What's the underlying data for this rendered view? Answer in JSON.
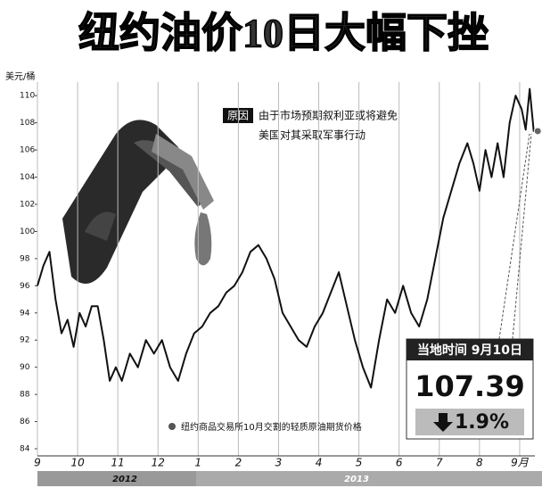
{
  "chart_data": {
    "type": "line",
    "title": "纽约油价10日大幅下挫",
    "y_label": "美元/桶",
    "annotation": {
      "tag": "原因",
      "lines": [
        "由于市场预期叙利亚或将避免",
        "美国对其采取军事行动"
      ]
    },
    "callout": {
      "header": "当地时间 9月10日",
      "value": "107.39",
      "change": "1.9%"
    },
    "years": [
      "2012",
      "2013"
    ],
    "x": [
      0,
      0.15,
      0.3,
      0.45,
      0.6,
      0.75,
      0.9,
      1.05,
      1.2,
      1.35,
      1.5,
      1.65,
      1.8,
      1.95,
      2.1,
      2.3,
      2.5,
      2.7,
      2.9,
      3.1,
      3.3,
      3.5,
      3.7,
      3.9,
      4.1,
      4.3,
      4.5,
      4.7,
      4.9,
      5.1,
      5.3,
      5.5,
      5.7,
      5.9,
      6.1,
      6.3,
      6.5,
      6.7,
      6.9,
      7.1,
      7.3,
      7.5,
      7.7,
      7.9,
      8.1,
      8.3,
      8.5,
      8.7,
      8.9,
      9.1,
      9.3,
      9.5,
      9.7,
      9.9,
      10.1,
      10.3,
      10.5,
      10.7,
      10.85,
      11.0,
      11.15,
      11.3,
      11.45,
      11.6,
      11.75,
      11.9,
      12.05,
      12.15,
      12.25,
      12.35,
      12.45
    ],
    "series": [
      {
        "name": "纽约商品交易所10月交割的轻质原油期货价格",
        "color": "#111111",
        "values": [
          96,
          97.5,
          98.5,
          95,
          92.5,
          93.5,
          91.5,
          94,
          93,
          94.5,
          94.5,
          92,
          89,
          90,
          89,
          91,
          90,
          92,
          91,
          92,
          90,
          89,
          91,
          92.5,
          93,
          94,
          94.5,
          95.5,
          96,
          97,
          98.5,
          99,
          98,
          96.5,
          94,
          93,
          92,
          91.5,
          93,
          94,
          95.5,
          97,
          94.5,
          92,
          90,
          88.5,
          92,
          95,
          94,
          96,
          94,
          93,
          95,
          98,
          101,
          103,
          105,
          106.5,
          105,
          103,
          106,
          104,
          106.5,
          104,
          108,
          110,
          109,
          107.5,
          110.5,
          107.39,
          107.39
        ]
      }
    ],
    "xlim": [
      0,
      12.7
    ],
    "xticks": [
      {
        "value": 0,
        "label": "9"
      },
      {
        "value": 1,
        "label": "10"
      },
      {
        "value": 2,
        "label": "11"
      },
      {
        "value": 3,
        "label": "12"
      },
      {
        "value": 4,
        "label": "1"
      },
      {
        "value": 5,
        "label": "2"
      },
      {
        "value": 6,
        "label": "3"
      },
      {
        "value": 7,
        "label": "4"
      },
      {
        "value": 8,
        "label": "5"
      },
      {
        "value": 9,
        "label": "6"
      },
      {
        "value": 10,
        "label": "7"
      },
      {
        "value": 11,
        "label": "8"
      },
      {
        "value": 12,
        "label": "9月"
      }
    ],
    "ylim": [
      84,
      111
    ],
    "yticks": [
      84,
      86,
      88,
      90,
      92,
      94,
      96,
      98,
      100,
      102,
      104,
      106,
      108,
      110
    ],
    "grid": true
  }
}
